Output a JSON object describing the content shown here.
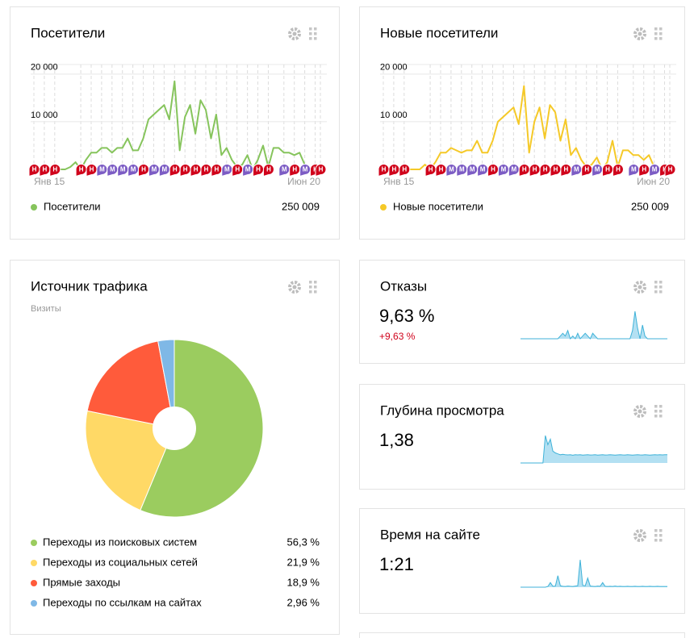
{
  "chart_data": [
    {
      "type": "line",
      "title": "Посетители",
      "categories": [
        "Янв 15",
        null,
        null,
        null,
        null,
        null,
        null,
        null,
        null,
        null,
        null,
        null,
        null,
        null,
        null,
        null,
        null,
        null,
        null,
        null,
        null,
        null,
        null,
        null,
        null,
        null,
        null,
        null,
        null,
        null,
        null,
        null,
        null,
        null,
        null,
        null,
        null,
        null,
        null,
        null,
        null,
        null,
        null,
        null,
        null,
        null,
        null,
        null,
        null,
        null,
        null,
        null,
        null,
        null,
        null,
        "Июн 20"
      ],
      "series": [
        {
          "name": "Посетители",
          "color": "#86c45c",
          "total": 250009,
          "total_label": "250 009",
          "values": [
            0,
            0,
            0,
            0,
            0,
            0,
            0,
            500,
            1500,
            0,
            2000,
            3500,
            3500,
            4500,
            4500,
            3500,
            4500,
            4500,
            6500,
            4000,
            4000,
            6500,
            10500,
            11500,
            12500,
            13500,
            10500,
            18500,
            4000,
            11000,
            13500,
            7500,
            14500,
            12500,
            6500,
            11500,
            3000,
            4500,
            2000,
            500,
            1000,
            3000,
            0,
            2000,
            5000,
            500,
            4500,
            4500,
            3500,
            3500,
            3000,
            3500,
            1000,
            0,
            0,
            0
          ]
        }
      ],
      "ylim": [
        0,
        22000
      ],
      "yticks": [
        {
          "value": 10000,
          "label": "10 000"
        },
        {
          "value": 20000,
          "label": "20 000"
        }
      ],
      "annotations": [
        {
          "x": 0,
          "label": "Н",
          "color": "#d0021b"
        },
        {
          "x": 2,
          "label": "Н",
          "color": "#d0021b"
        },
        {
          "x": 4,
          "label": "Н",
          "color": "#d0021b"
        },
        {
          "x": 9,
          "label": "Н",
          "color": "#d0021b"
        },
        {
          "x": 11,
          "label": "Н",
          "color": "#d0021b"
        },
        {
          "x": 13,
          "label": "М",
          "color": "#7c5cc4"
        },
        {
          "x": 15,
          "label": "М",
          "color": "#7c5cc4"
        },
        {
          "x": 17,
          "label": "М",
          "color": "#7c5cc4"
        },
        {
          "x": 19,
          "label": "М",
          "color": "#7c5cc4"
        },
        {
          "x": 21,
          "label": "Н",
          "color": "#d0021b"
        },
        {
          "x": 23,
          "label": "М",
          "color": "#7c5cc4"
        },
        {
          "x": 25,
          "label": "М",
          "color": "#7c5cc4"
        },
        {
          "x": 27,
          "label": "Н",
          "color": "#d0021b"
        },
        {
          "x": 29,
          "label": "Н",
          "color": "#d0021b"
        },
        {
          "x": 31,
          "label": "Н",
          "color": "#d0021b"
        },
        {
          "x": 33,
          "label": "Н",
          "color": "#d0021b"
        },
        {
          "x": 35,
          "label": "Н",
          "color": "#d0021b"
        },
        {
          "x": 37,
          "label": "М",
          "color": "#7c5cc4"
        },
        {
          "x": 39,
          "label": "Н",
          "color": "#d0021b"
        },
        {
          "x": 41,
          "label": "М",
          "color": "#7c5cc4"
        },
        {
          "x": 43,
          "label": "Н",
          "color": "#d0021b"
        },
        {
          "x": 45,
          "label": "Н",
          "color": "#d0021b"
        },
        {
          "x": 48,
          "label": "М",
          "color": "#7c5cc4"
        },
        {
          "x": 50,
          "label": "Н",
          "color": "#d0021b"
        },
        {
          "x": 52,
          "label": "М",
          "color": "#7c5cc4"
        },
        {
          "x": 54,
          "label": "Н",
          "color": "#d0021b"
        },
        {
          "x": 55,
          "label": "Н",
          "color": "#d0021b"
        }
      ]
    },
    {
      "type": "line",
      "title": "Новые посетители",
      "categories": [
        "Янв 15",
        null,
        null,
        null,
        null,
        null,
        null,
        null,
        null,
        null,
        null,
        null,
        null,
        null,
        null,
        null,
        null,
        null,
        null,
        null,
        null,
        null,
        null,
        null,
        null,
        null,
        null,
        null,
        null,
        null,
        null,
        null,
        null,
        null,
        null,
        null,
        null,
        null,
        null,
        null,
        null,
        null,
        null,
        null,
        null,
        null,
        null,
        null,
        null,
        null,
        null,
        null,
        null,
        null,
        null,
        "Июн 20"
      ],
      "series": [
        {
          "name": "Новые посетители",
          "color": "#f5c928",
          "total": 250009,
          "total_label": "250 009",
          "values": [
            0,
            0,
            0,
            0,
            0,
            0,
            0,
            0,
            1000,
            0,
            1500,
            3500,
            3500,
            4500,
            4000,
            3500,
            4000,
            4000,
            6000,
            3500,
            3500,
            6000,
            10000,
            11000,
            12000,
            13000,
            9500,
            17500,
            3500,
            10000,
            13000,
            6500,
            13500,
            12000,
            6000,
            10500,
            3000,
            4500,
            2000,
            500,
            1000,
            2500,
            0,
            1500,
            6000,
            500,
            4000,
            4000,
            3000,
            3000,
            2000,
            3000,
            500,
            0,
            0,
            0
          ]
        }
      ],
      "ylim": [
        0,
        22000
      ],
      "yticks": [
        {
          "value": 10000,
          "label": "10 000"
        },
        {
          "value": 20000,
          "label": "20 000"
        }
      ],
      "annotations": [
        {
          "x": 0,
          "label": "Н",
          "color": "#d0021b"
        },
        {
          "x": 2,
          "label": "Н",
          "color": "#d0021b"
        },
        {
          "x": 4,
          "label": "Н",
          "color": "#d0021b"
        },
        {
          "x": 9,
          "label": "Н",
          "color": "#d0021b"
        },
        {
          "x": 11,
          "label": "Н",
          "color": "#d0021b"
        },
        {
          "x": 13,
          "label": "М",
          "color": "#7c5cc4"
        },
        {
          "x": 15,
          "label": "М",
          "color": "#7c5cc4"
        },
        {
          "x": 17,
          "label": "М",
          "color": "#7c5cc4"
        },
        {
          "x": 19,
          "label": "М",
          "color": "#7c5cc4"
        },
        {
          "x": 21,
          "label": "Н",
          "color": "#d0021b"
        },
        {
          "x": 23,
          "label": "М",
          "color": "#7c5cc4"
        },
        {
          "x": 25,
          "label": "М",
          "color": "#7c5cc4"
        },
        {
          "x": 27,
          "label": "Н",
          "color": "#d0021b"
        },
        {
          "x": 29,
          "label": "Н",
          "color": "#d0021b"
        },
        {
          "x": 31,
          "label": "Н",
          "color": "#d0021b"
        },
        {
          "x": 33,
          "label": "Н",
          "color": "#d0021b"
        },
        {
          "x": 35,
          "label": "Н",
          "color": "#d0021b"
        },
        {
          "x": 37,
          "label": "М",
          "color": "#7c5cc4"
        },
        {
          "x": 39,
          "label": "Н",
          "color": "#d0021b"
        },
        {
          "x": 41,
          "label": "М",
          "color": "#7c5cc4"
        },
        {
          "x": 43,
          "label": "Н",
          "color": "#d0021b"
        },
        {
          "x": 45,
          "label": "Н",
          "color": "#d0021b"
        },
        {
          "x": 48,
          "label": "М",
          "color": "#7c5cc4"
        },
        {
          "x": 50,
          "label": "Н",
          "color": "#d0021b"
        },
        {
          "x": 52,
          "label": "М",
          "color": "#7c5cc4"
        },
        {
          "x": 54,
          "label": "Н",
          "color": "#d0021b"
        },
        {
          "x": 55,
          "label": "Н",
          "color": "#d0021b"
        }
      ]
    },
    {
      "type": "pie",
      "title": "Источник трафика",
      "subtitle": "Визиты",
      "categories": [
        "Переходы из поисковых систем",
        "Переходы из социальных сетей",
        "Прямые заходы",
        "Переходы по ссылкам на сайтах"
      ],
      "values": [
        56.3,
        21.9,
        18.9,
        2.96
      ],
      "value_labels": [
        "56,3 %",
        "21,9 %",
        "18,9 %",
        "2,96 %"
      ],
      "colors": [
        "#9bcc5f",
        "#ffd966",
        "#ff5b3b",
        "#7fb8e6"
      ]
    },
    {
      "type": "sparkline",
      "title": "Отказы",
      "value": 9.63,
      "value_label": "9,63 %",
      "delta": 9.63,
      "delta_label": "+9,63 %",
      "values": [
        0,
        0,
        0,
        0,
        0,
        0,
        0,
        0,
        0,
        0,
        0,
        0,
        0,
        0,
        0,
        0,
        1,
        2,
        1,
        3,
        0,
        1,
        0,
        2,
        0,
        1,
        2,
        1,
        0,
        2,
        1,
        0,
        0,
        0,
        0,
        0,
        0,
        0,
        0,
        0,
        0,
        0,
        0,
        0,
        0,
        3,
        10,
        4,
        0,
        5,
        1,
        0,
        0,
        0,
        0,
        0,
        0,
        0,
        0,
        0
      ]
    },
    {
      "type": "sparkline",
      "title": "Глубина просмотра",
      "value": 1.38,
      "value_label": "1,38",
      "values": [
        0,
        0,
        0,
        0,
        0,
        0,
        0,
        0,
        0,
        0,
        3.0,
        2.0,
        2.6,
        1.3,
        1.1,
        1.0,
        0.9,
        0.95,
        0.9,
        0.88,
        0.9,
        0.85,
        0.9,
        0.88,
        0.9,
        0.86,
        0.88,
        0.9,
        0.87,
        0.88,
        0.9,
        0.86,
        0.88,
        0.9,
        0.87,
        0.88,
        0.9,
        0.88,
        0.86,
        0.88,
        0.9,
        0.88,
        0.87,
        0.9,
        0.88,
        0.86,
        0.88,
        0.9,
        0.88,
        0.87,
        0.9,
        0.88,
        0.86,
        0.88,
        0.9,
        0.88,
        0.9,
        0.88,
        0.9,
        0.9
      ]
    },
    {
      "type": "sparkline",
      "title": "Время на сайте",
      "value": 81,
      "value_label": "1:21",
      "values": [
        0,
        0,
        0,
        0,
        0,
        0,
        0,
        0,
        0,
        0,
        0,
        0.3,
        2,
        0.4,
        0.5,
        5,
        0.6,
        0.4,
        0.3,
        0.5,
        0.4,
        0.3,
        0.5,
        0.6,
        12,
        0.8,
        0.6,
        4,
        0.5,
        0.4,
        0.3,
        0.5,
        0.4,
        2,
        0.4,
        0.3,
        0.4,
        0.3,
        0.5,
        0.3,
        0.4,
        0.3,
        0.3,
        0.4,
        0.3,
        0.3,
        0.4,
        0.3,
        0.3,
        0.4,
        0.3,
        0.3,
        0.4,
        0.3,
        0.3,
        0.4,
        0.3,
        0.3,
        0.3,
        0.3
      ]
    }
  ]
}
